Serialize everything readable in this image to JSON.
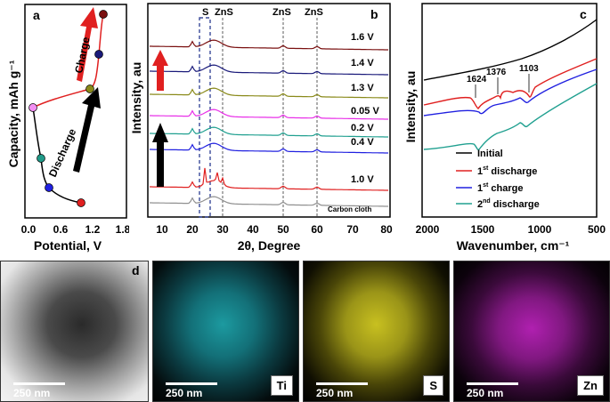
{
  "panel_a": {
    "letter": "a",
    "xlabel": "Potential, V",
    "ylabel": "Capacity, mAh g⁻¹",
    "xticks": [
      "0.0",
      "0.6",
      "1.2",
      "1.8"
    ],
    "label_charge": "Charge",
    "label_discharge": "Discharge"
  },
  "panel_b": {
    "letter": "b",
    "xlabel": "2θ, Degree",
    "ylabel": "Intensity, au",
    "xticks": [
      "10",
      "20",
      "30",
      "40",
      "50",
      "60",
      "70",
      "80"
    ],
    "ref_labels": [
      "S",
      "ZnS",
      "ZnS",
      "ZnS"
    ],
    "curve_labels": [
      "1.6 V",
      "1.4 V",
      "1.3 V",
      "0.05 V",
      "0.2 V",
      "0.4 V",
      "1.0 V",
      "Carbon cloth"
    ],
    "colors": [
      "#7a1010",
      "#1a1a7a",
      "#8a8a1a",
      "#e830e8",
      "#20a090",
      "#2020e0",
      "#e02020",
      "#909090"
    ]
  },
  "panel_c": {
    "letter": "c",
    "xlabel": "Wavenumber, cm⁻¹",
    "ylabel": "Intensity, au",
    "xticks": [
      "2000",
      "1500",
      "1000",
      "500"
    ],
    "peak_labels": [
      "1624",
      "1376",
      "1103"
    ],
    "legend": [
      {
        "base": "Initial",
        "sup": "",
        "rest": "",
        "color": "#000000"
      },
      {
        "base": "1",
        "sup": "st",
        "rest": " discharge",
        "color": "#e02020"
      },
      {
        "base": "1",
        "sup": "st",
        "rest": " charge",
        "color": "#2020e0"
      },
      {
        "base": "2",
        "sup": "nd",
        "rest": " discharge",
        "color": "#20a090"
      }
    ]
  },
  "panel_d": {
    "letter": "d",
    "scale": "250 nm",
    "maps": [
      "Ti",
      "S",
      "Zn"
    ]
  }
}
